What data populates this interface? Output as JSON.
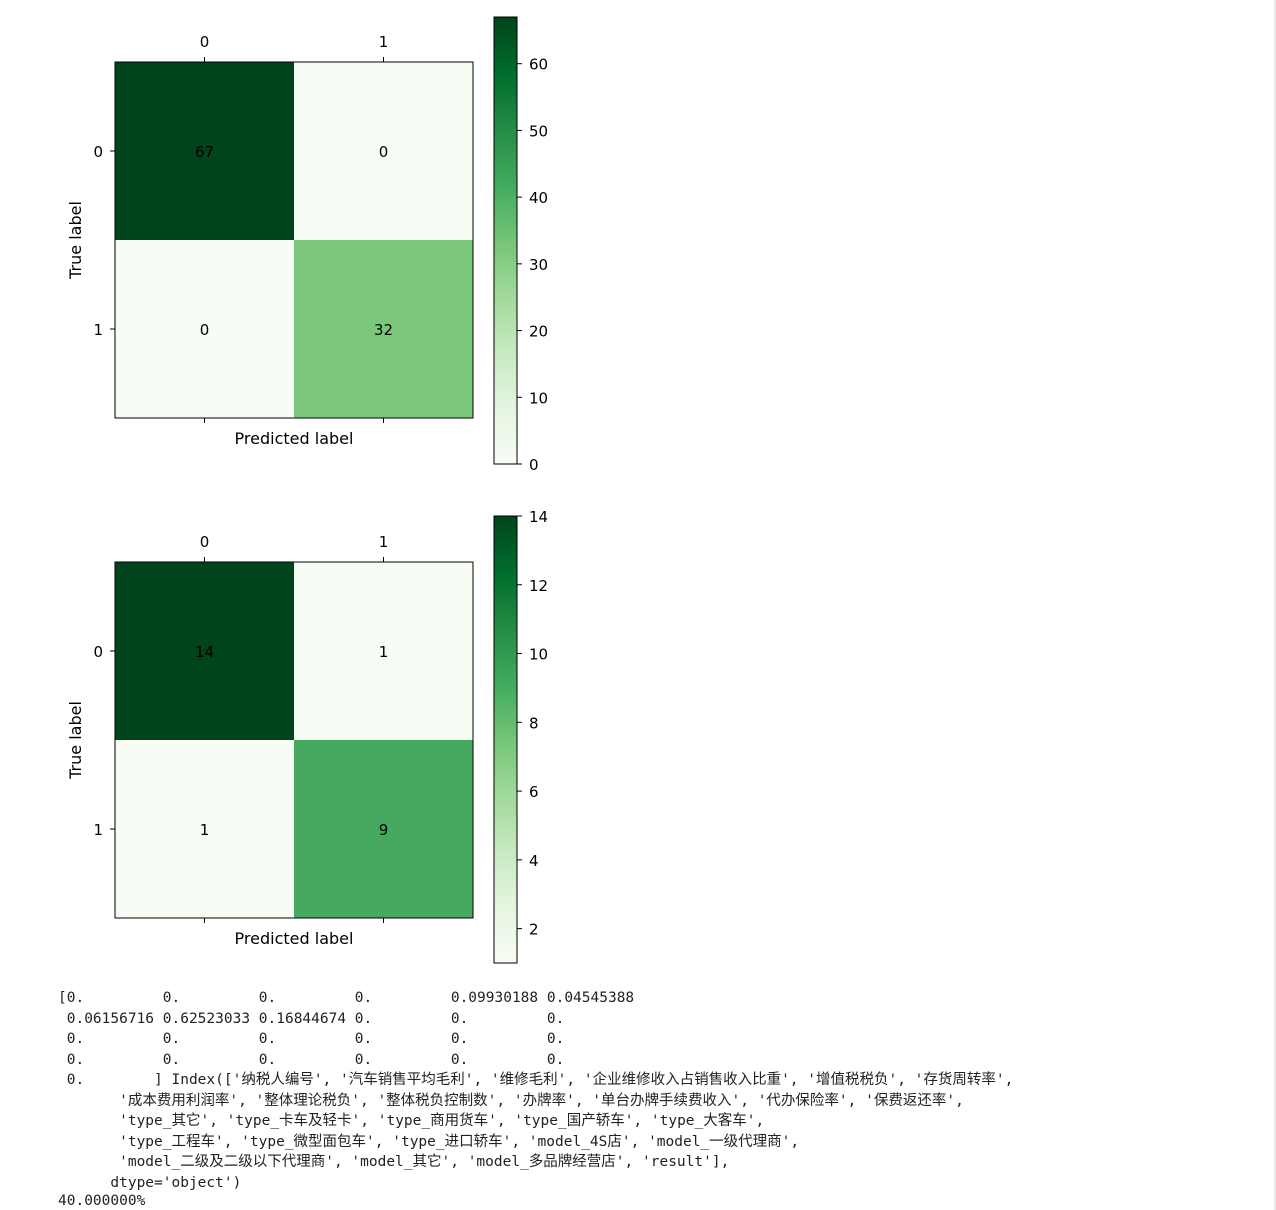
{
  "chart_data": [
    {
      "type": "heatmap",
      "x_ticks": [
        "0",
        "1"
      ],
      "y_ticks": [
        "0",
        "1"
      ],
      "xlabel": "Predicted label",
      "ylabel": "True label",
      "matrix": [
        [
          67,
          0
        ],
        [
          0,
          32
        ]
      ],
      "cells": [
        {
          "row": 0,
          "col": 0,
          "value": 67,
          "color": "#00441b"
        },
        {
          "row": 0,
          "col": 1,
          "value": 0,
          "color": "#f7fcf5"
        },
        {
          "row": 1,
          "col": 0,
          "value": 0,
          "color": "#f7fcf5"
        },
        {
          "row": 1,
          "col": 1,
          "value": 32,
          "color": "#7bc77c"
        }
      ],
      "colorbar": {
        "min": 0,
        "max": 67,
        "ticks": [
          "0",
          "10",
          "20",
          "30",
          "40",
          "50",
          "60"
        ],
        "tick_values": [
          0,
          10,
          20,
          30,
          40,
          50,
          60
        ]
      },
      "colormap": "Greens"
    },
    {
      "type": "heatmap",
      "x_ticks": [
        "0",
        "1"
      ],
      "y_ticks": [
        "0",
        "1"
      ],
      "xlabel": "Predicted label",
      "ylabel": "True label",
      "matrix": [
        [
          14,
          1
        ],
        [
          1,
          9
        ]
      ],
      "cells": [
        {
          "row": 0,
          "col": 0,
          "value": 14,
          "color": "#00441b"
        },
        {
          "row": 0,
          "col": 1,
          "value": 1,
          "color": "#f7fcf5"
        },
        {
          "row": 1,
          "col": 0,
          "value": 1,
          "color": "#f7fcf5"
        },
        {
          "row": 1,
          "col": 1,
          "value": 9,
          "color": "#47a95f"
        }
      ],
      "colorbar": {
        "min": 1,
        "max": 14,
        "ticks": [
          "2",
          "4",
          "6",
          "8",
          "10",
          "12",
          "14"
        ],
        "tick_values": [
          2,
          4,
          6,
          8,
          10,
          12,
          14
        ]
      },
      "colormap": "Greens"
    }
  ],
  "colorbar_gradient": [
    "#f7fcf5",
    "#e5f5e0",
    "#c7e9c0",
    "#a1d99b",
    "#74c476",
    "#41ab5d",
    "#238b45",
    "#006d2c",
    "#00441b"
  ],
  "console": {
    "lines": [
      "[0.         0.         0.         0.         0.09930188 0.04545388",
      " 0.06156716 0.62523033 0.16844674 0.         0.         0.",
      " 0.         0.         0.         0.         0.         0.",
      " 0.         0.         0.         0.         0.         0.",
      " 0.        ] Index(['纳税人编号', '汽车销售平均毛利', '维修毛利', '企业维修收入占销售收入比重', '增值税税负', '存货周转率',",
      "       '成本费用利润率', '整体理论税负', '整体税负控制数', '办牌率', '单台办牌手续费收入', '代办保险率', '保费返还率',",
      "       'type_其它', 'type_卡车及轻卡', 'type_商用货车', 'type_国产轿车', 'type_大客车',",
      "       'type_工程车', 'type_微型面包车', 'type_进口轿车', 'model_4S店', 'model_一级代理商',",
      "       'model_二级及二级以下代理商', 'model_其它', 'model_多品牌经营店', 'result'],",
      "      dtype='object')"
    ],
    "accuracy": "40.000000%"
  }
}
